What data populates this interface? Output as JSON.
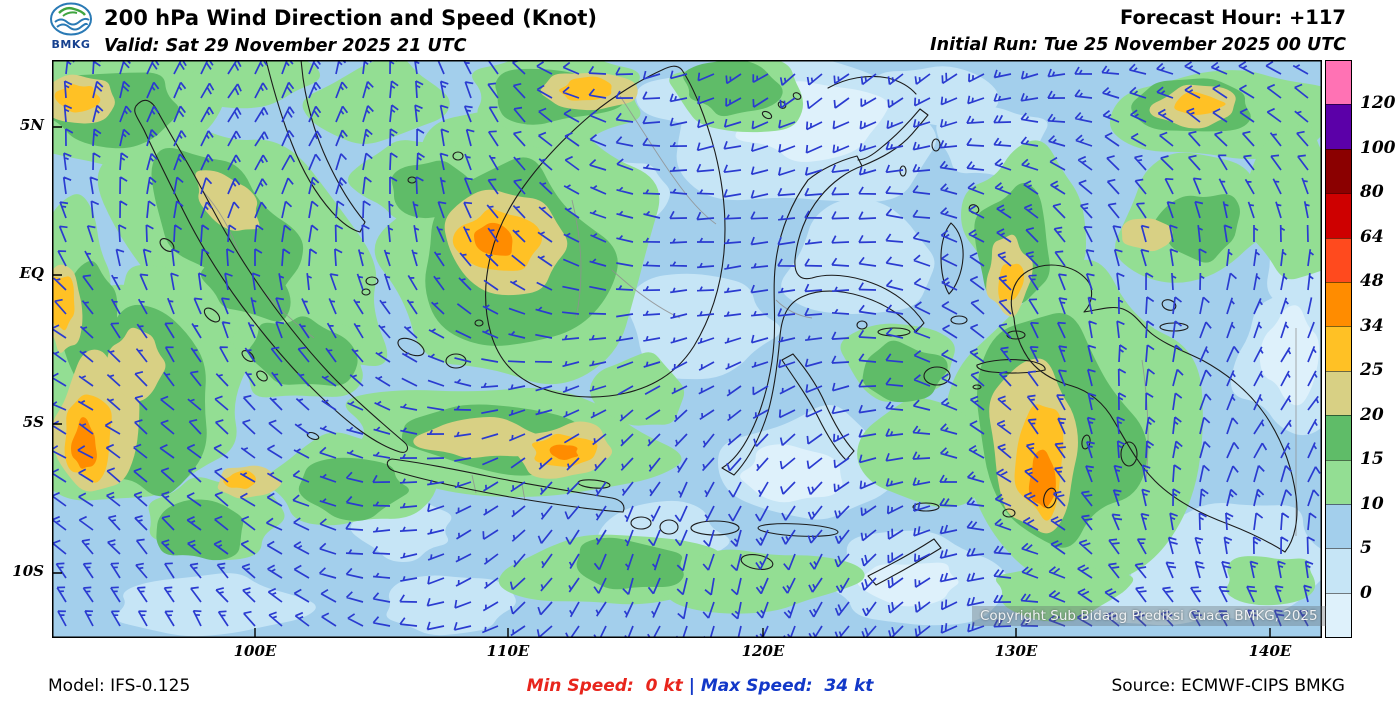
{
  "header": {
    "logo_text": "BMKG",
    "title": "200 hPa Wind Direction and Speed (Knot)",
    "valid": "Valid: Sat 29 November 2025 21 UTC",
    "forecast_hour": "Forecast Hour: +117",
    "initial_run": "Initial Run: Tue 25 November 2025 00 UTC"
  },
  "map": {
    "y_axis_labels": [
      "5N",
      "EQ",
      "5S",
      "10S"
    ],
    "x_axis_labels": [
      "100E",
      "110E",
      "120E",
      "130E",
      "140E"
    ],
    "copyright": "Copyright Sub Bidang Prediksi Cuaca BMKG, 2025",
    "palette": {
      "base": "#A3CFEC",
      "pale_blue": "#C6E5F6",
      "palest_blue": "#DEF1FB",
      "light_green": "#93DE93",
      "green": "#5FBC68",
      "khaki": "#D8D084",
      "gold": "#FFC125",
      "orange": "#FF8C00",
      "barb": "#2A3BD0",
      "coast": "#1C1C1C",
      "admin": "#909090"
    }
  },
  "legend": {
    "values": [
      "120",
      "100",
      "80",
      "64",
      "48",
      "34",
      "25",
      "20",
      "15",
      "10",
      "5",
      "0"
    ],
    "colors_top_to_bottom": [
      "#FF72B4",
      "#5B00A8",
      "#8B0000",
      "#CE0000",
      "#FF4A1E",
      "#FF8C00",
      "#FFC125",
      "#D8D084",
      "#5FBC68",
      "#93DE93",
      "#A3CFEC",
      "#C6E5F6",
      "#DEF1FB"
    ]
  },
  "footer": {
    "model": "Model: IFS-0.125",
    "min_speed": "Min Speed:  0 kt",
    "separator": "|",
    "max_speed": "Max Speed:  34 kt",
    "source": "Source: ECMWF-CIPS BMKG",
    "min_speed_color": "#E8251C",
    "max_speed_color": "#1238C8"
  }
}
